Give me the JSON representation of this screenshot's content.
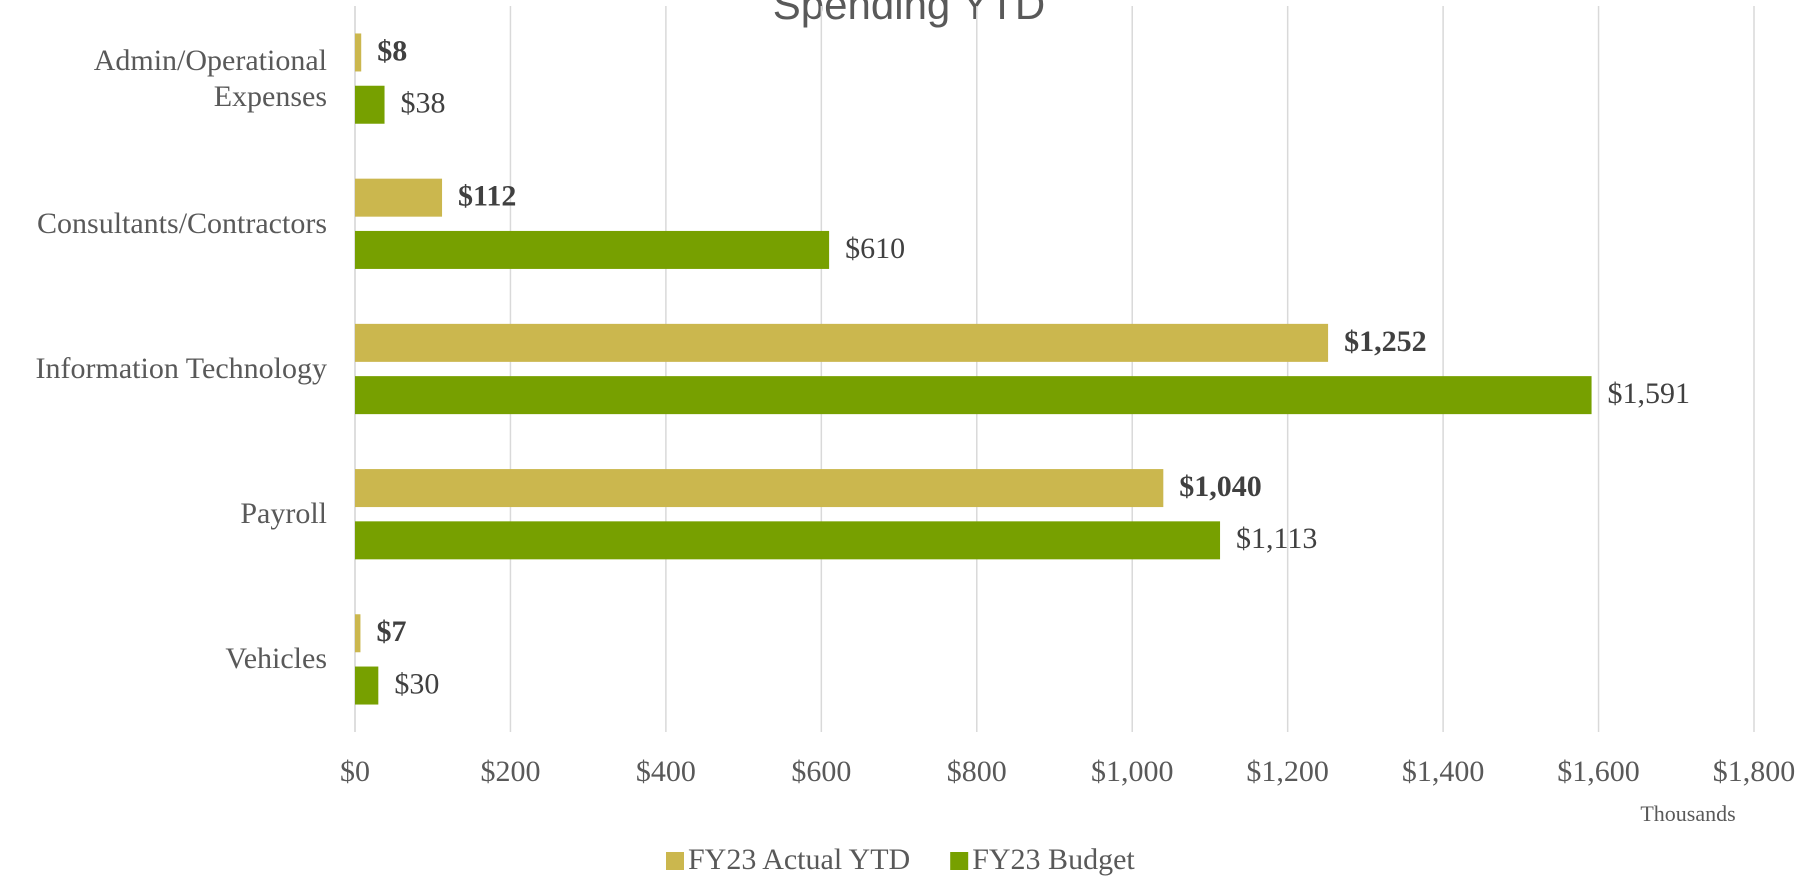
{
  "chart_data": {
    "type": "bar",
    "orientation": "horizontal",
    "title": "Spending YTD",
    "categories": [
      "Admin/Operational Expenses",
      "Consultants/Contractors",
      "Information Technology",
      "Payroll",
      "Vehicles"
    ],
    "series": [
      {
        "name": "FY23 Actual YTD",
        "color": "#cbb74e",
        "values": [
          8,
          112,
          1252,
          1040,
          7
        ],
        "value_labels": [
          "$8",
          "$112",
          "$1,252",
          "$1,040",
          "$7"
        ]
      },
      {
        "name": "FY23 Budget",
        "color": "#77a000",
        "values": [
          38,
          610,
          1591,
          1113,
          30
        ],
        "value_labels": [
          "$38",
          "$610",
          "$1,591",
          "$1,113",
          "$30"
        ]
      }
    ],
    "xlabel": "Thousands",
    "xlim": [
      0,
      1800
    ],
    "xticks": [
      {
        "value": 0,
        "label": "$0"
      },
      {
        "value": 200,
        "label": "$200"
      },
      {
        "value": 400,
        "label": "$400"
      },
      {
        "value": 600,
        "label": "$600"
      },
      {
        "value": 800,
        "label": "$800"
      },
      {
        "value": 1000,
        "label": "$1,000"
      },
      {
        "value": 1200,
        "label": "$1,200"
      },
      {
        "value": 1400,
        "label": "$1,400"
      },
      {
        "value": 1600,
        "label": "$1,600"
      },
      {
        "value": 1800,
        "label": "$1,800"
      }
    ],
    "grid": true,
    "legend": "bottom"
  }
}
